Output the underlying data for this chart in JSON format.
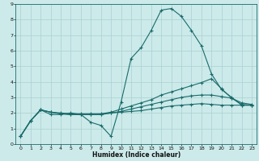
{
  "xlabel": "Humidex (Indice chaleur)",
  "bg_color": "#cceaea",
  "grid_color": "#aad0d0",
  "line_color": "#1a6b6b",
  "marker": "+",
  "xlim": [
    -0.5,
    23.5
  ],
  "ylim": [
    0,
    9
  ],
  "xticks": [
    0,
    1,
    2,
    3,
    4,
    5,
    6,
    7,
    8,
    9,
    10,
    11,
    12,
    13,
    14,
    15,
    16,
    17,
    18,
    19,
    20,
    21,
    22,
    23
  ],
  "yticks": [
    0,
    1,
    2,
    3,
    4,
    5,
    6,
    7,
    8,
    9
  ],
  "series": [
    {
      "x": [
        0,
        1,
        2,
        3,
        4,
        5,
        6,
        7,
        8,
        9,
        10,
        11,
        12,
        13,
        14,
        15,
        16,
        17,
        18,
        19,
        20,
        21,
        22,
        23
      ],
      "y": [
        0.5,
        1.5,
        2.2,
        1.9,
        1.9,
        2.0,
        1.9,
        1.4,
        1.2,
        0.5,
        2.7,
        5.5,
        6.2,
        7.3,
        8.6,
        8.7,
        8.2,
        7.3,
        6.3,
        4.5,
        3.5,
        3.0,
        2.5,
        2.5
      ],
      "has_markers": true
    },
    {
      "x": [
        0,
        1,
        2,
        3,
        4,
        5,
        6,
        7,
        8,
        9,
        10,
        11,
        12,
        13,
        14,
        15,
        16,
        17,
        18,
        19,
        20,
        21,
        22,
        23
      ],
      "y": [
        0.5,
        1.5,
        2.2,
        2.05,
        2.0,
        1.95,
        1.95,
        1.95,
        1.95,
        2.05,
        2.25,
        2.45,
        2.65,
        2.85,
        3.15,
        3.35,
        3.55,
        3.75,
        3.95,
        4.2,
        3.55,
        2.95,
        2.55,
        2.5
      ],
      "has_markers": true
    },
    {
      "x": [
        0,
        1,
        2,
        3,
        4,
        5,
        6,
        7,
        8,
        9,
        10,
        11,
        12,
        13,
        14,
        15,
        16,
        17,
        18,
        19,
        20,
        21,
        22,
        23
      ],
      "y": [
        0.5,
        1.5,
        2.2,
        2.05,
        1.95,
        1.9,
        1.9,
        1.9,
        1.9,
        2.0,
        2.1,
        2.25,
        2.4,
        2.55,
        2.7,
        2.85,
        3.0,
        3.1,
        3.15,
        3.15,
        3.05,
        2.95,
        2.65,
        2.55
      ],
      "has_markers": true
    },
    {
      "x": [
        0,
        1,
        2,
        3,
        4,
        5,
        6,
        7,
        8,
        9,
        10,
        11,
        12,
        13,
        14,
        15,
        16,
        17,
        18,
        19,
        20,
        21,
        22,
        23
      ],
      "y": [
        0.5,
        1.5,
        2.2,
        2.05,
        1.95,
        1.9,
        1.9,
        1.9,
        1.9,
        2.0,
        2.05,
        2.1,
        2.15,
        2.25,
        2.35,
        2.45,
        2.5,
        2.55,
        2.6,
        2.55,
        2.5,
        2.5,
        2.5,
        2.5
      ],
      "has_markers": true
    }
  ]
}
